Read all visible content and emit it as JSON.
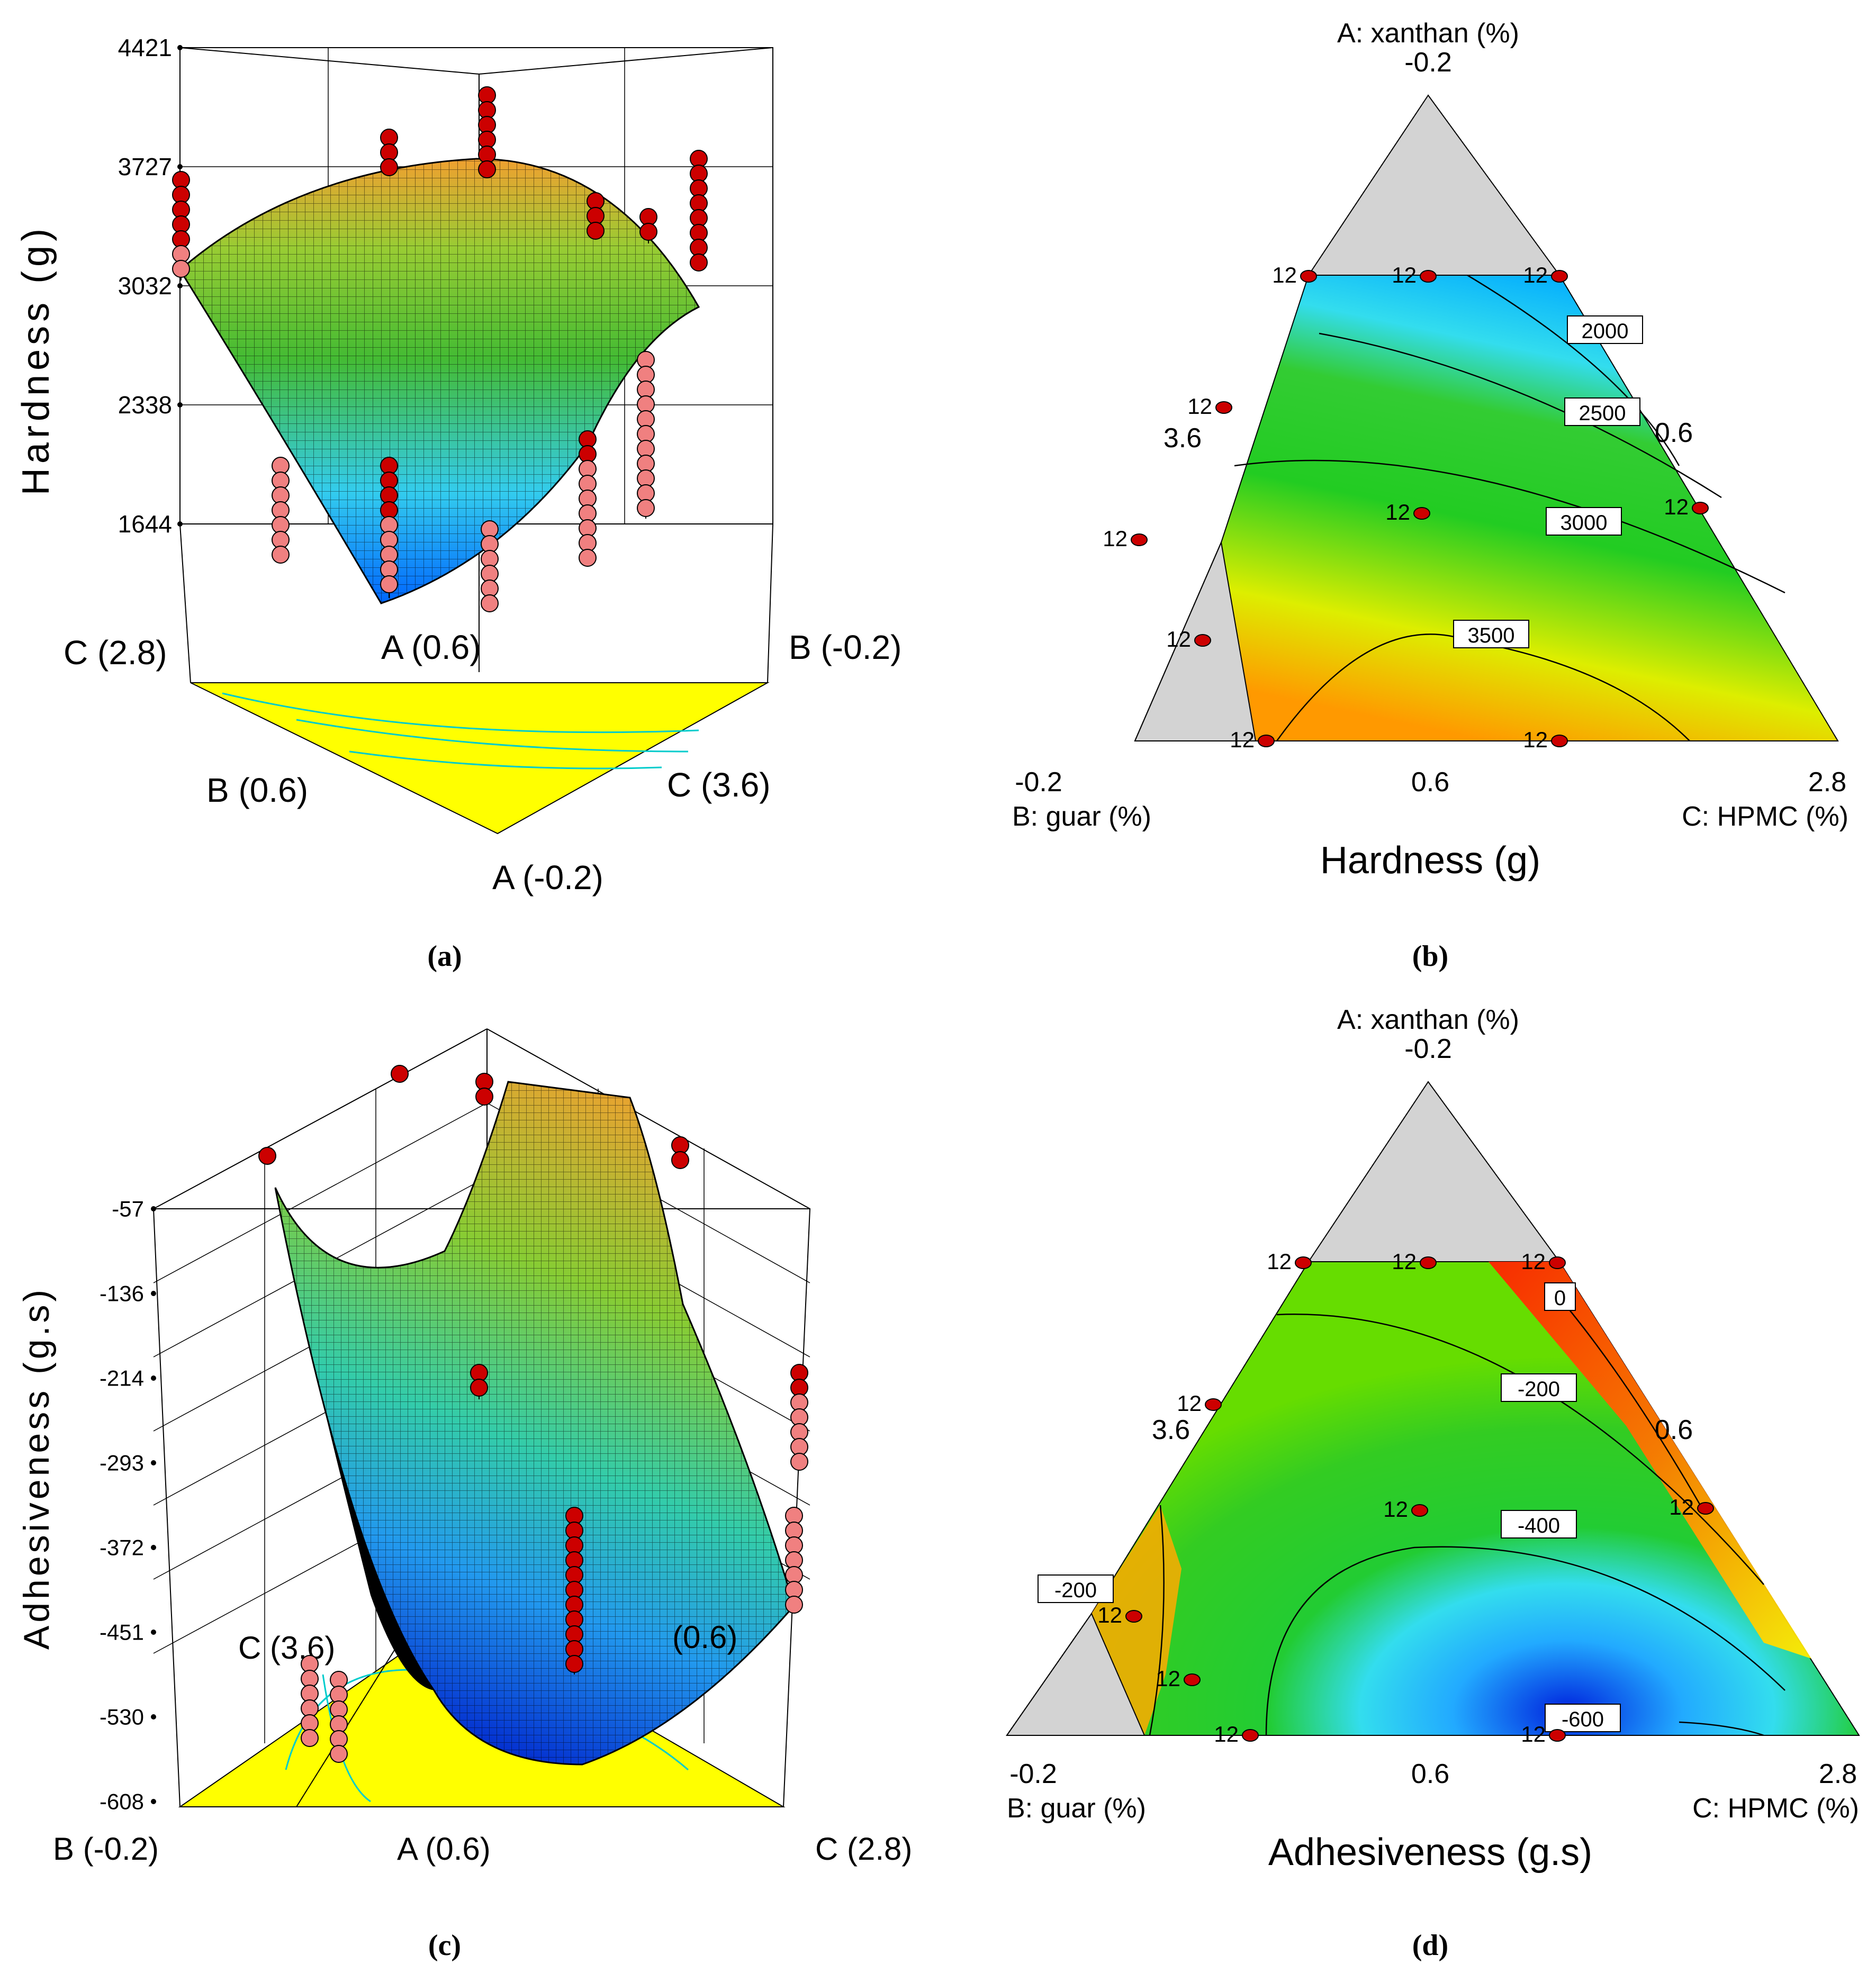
{
  "colors": {
    "yellow": "#ffff00",
    "grey": "#d3d3d3",
    "point_dark": "#cc0000",
    "point_light": "#f08080",
    "contour_line": "#00cccc"
  },
  "chart_data": [
    {
      "panel": "a",
      "caption": "(a)",
      "type": "surface",
      "zlabel": "Hardness (g)",
      "zticks": [
        "4421",
        "3727",
        "3032",
        "2338",
        "1644"
      ],
      "corner_labels": [
        "C (2.8)",
        "A (0.6)",
        "B (-0.2)",
        "B (0.6)",
        "C (3.6)",
        "A (-0.2)"
      ]
    },
    {
      "panel": "b",
      "caption": "(b)",
      "type": "contour",
      "title": "Hardness (g)",
      "axis_labels": {
        "top": "A: xanthan (%)",
        "left": "B: guar (%)",
        "right": "C: HPMC (%)"
      },
      "ticks": [
        "-0.2",
        "3.6",
        "0.6",
        "-0.2",
        "0.6",
        "2.8"
      ],
      "contour_levels": [
        "2000",
        "2500",
        "3000",
        "3500"
      ],
      "design_point_label": "12",
      "design_point_count": 10
    },
    {
      "panel": "c",
      "caption": "(c)",
      "type": "surface",
      "zlabel": "Adhesiveness (g.s)",
      "zticks": [
        "-57",
        "-136",
        "-214",
        "-293",
        "-372",
        "-451",
        "-530",
        "-608"
      ],
      "corner_labels": [
        "C (3.6)",
        "(0.6)",
        "B (-0.2)",
        "A (0.6)",
        "C (2.8)"
      ]
    },
    {
      "panel": "d",
      "caption": "(d)",
      "type": "contour",
      "title": "Adhesiveness (g.s)",
      "axis_labels": {
        "top": "A: xanthan (%)",
        "left": "B: guar (%)",
        "right": "C: HPMC (%)"
      },
      "ticks": [
        "-0.2",
        "3.6",
        "0.6",
        "-0.2",
        "0.6",
        "2.8"
      ],
      "contour_levels": [
        "0",
        "-200",
        "-200",
        "-400",
        "-600"
      ],
      "design_point_label": "12",
      "design_point_count": 10
    }
  ]
}
